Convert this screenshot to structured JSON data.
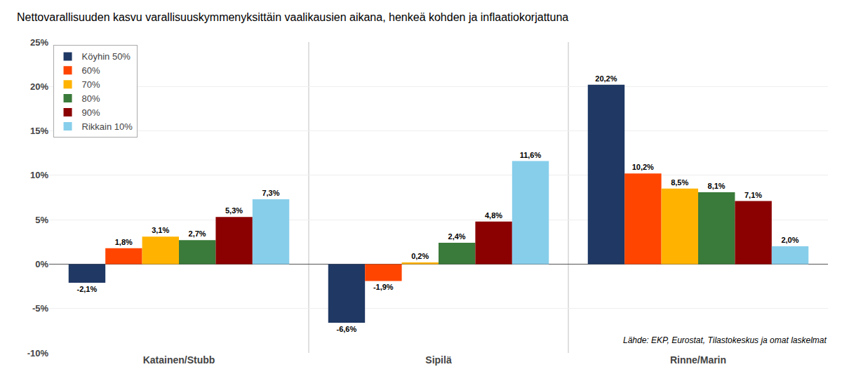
{
  "chart_data": {
    "type": "bar",
    "title": "Nettovarallisuuden kasvu varallisuuskymmenyksittäin vaalikausien aikana, henkeä kohden ja inflaatiokorjattuna",
    "categories": [
      "Katainen/Stubb",
      "Sipilä",
      "Rinne/Marin"
    ],
    "series": [
      {
        "name": "Köyhin 50%",
        "color": "#1F3864",
        "values": [
          -2.1,
          -6.6,
          20.2
        ],
        "value_labels": [
          "-2,1%",
          "-6,6%",
          "20,2%"
        ]
      },
      {
        "name": "60%",
        "color": "#FF4500",
        "values": [
          1.8,
          -1.9,
          10.2
        ],
        "value_labels": [
          "1,8%",
          "-1,9%",
          "10,2%"
        ]
      },
      {
        "name": "70%",
        "color": "#FFB300",
        "values": [
          3.1,
          0.2,
          8.5
        ],
        "value_labels": [
          "3,1%",
          "0,2%",
          "8,5%"
        ]
      },
      {
        "name": "80%",
        "color": "#3A7A3A",
        "values": [
          2.7,
          2.4,
          8.1
        ],
        "value_labels": [
          "2,7%",
          "2,4%",
          "8,1%"
        ]
      },
      {
        "name": "90%",
        "color": "#8B0000",
        "values": [
          5.3,
          4.8,
          7.1
        ],
        "value_labels": [
          "5,3%",
          "4,8%",
          "7,1%"
        ]
      },
      {
        "name": "Rikkain 10%",
        "color": "#87CEEB",
        "values": [
          7.3,
          11.6,
          2.0
        ],
        "value_labels": [
          "7,3%",
          "11,6%",
          "2,0%"
        ]
      }
    ],
    "ylim": [
      -10,
      25
    ],
    "yticks": [
      {
        "value": -10,
        "label": "-10%"
      },
      {
        "value": -5,
        "label": "-5%"
      },
      {
        "value": 0,
        "label": "0%"
      },
      {
        "value": 5,
        "label": "5%"
      },
      {
        "value": 10,
        "label": "10%"
      },
      {
        "value": 15,
        "label": "15%"
      },
      {
        "value": 20,
        "label": "20%"
      },
      {
        "value": 25,
        "label": "25%"
      }
    ],
    "grid": true,
    "legend": "upper left",
    "data_labels": true,
    "annotations": [
      "Lähde: EKP, Eurostat, Tilastokeskus ja omat laskelmat"
    ]
  }
}
